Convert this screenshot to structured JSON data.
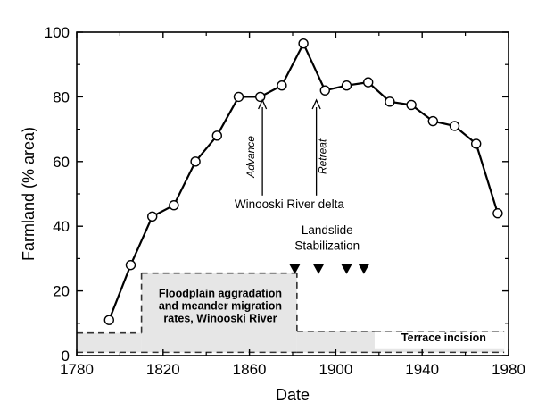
{
  "chart_data": {
    "type": "line",
    "xlabel": "Date",
    "ylabel": "Farmland (% area)",
    "xlim": [
      1780,
      1980
    ],
    "ylim": [
      0,
      100
    ],
    "xticks": [
      1780,
      1820,
      1860,
      1900,
      1940,
      1980
    ],
    "yticks": [
      0,
      20,
      40,
      60,
      80,
      100
    ],
    "grid": false,
    "series": [
      {
        "x": [
          1795,
          1805,
          1815,
          1825,
          1835,
          1845,
          1855,
          1865,
          1875,
          1885,
          1895,
          1905,
          1915,
          1925,
          1935,
          1945,
          1955,
          1965,
          1975
        ],
        "y": [
          11,
          28,
          43,
          46.5,
          60,
          68,
          80,
          80,
          83.5,
          96.5,
          82,
          83.5,
          84.5,
          78.5,
          77.5,
          72.5,
          71,
          65.5,
          44
        ]
      }
    ],
    "annotations": {
      "advance_label": "Advance",
      "advance_x": 1866,
      "retreat_label": "Retreat",
      "retreat_x": 1891,
      "delta_label": "Winooski River delta",
      "landslide_line1": "Landslide",
      "landslide_line2": "Stabilization",
      "landslide_x": [
        1881,
        1892,
        1905,
        1913
      ],
      "floodplain_line1": "Floodplain aggradation",
      "floodplain_line2": "and meander migration",
      "floodplain_line3": "rates, Winooski River",
      "terrace_label": "Terrace incision",
      "bands": [
        {
          "x": [
            1780,
            1810
          ],
          "y": [
            1,
            7
          ]
        },
        {
          "x": [
            1810,
            1882
          ],
          "y": [
            1,
            25.5
          ]
        },
        {
          "x": [
            1882,
            1918
          ],
          "y": [
            1,
            7.5
          ]
        },
        {
          "x": [
            1918,
            1978
          ],
          "y": [
            1,
            7.5
          ]
        }
      ]
    }
  }
}
